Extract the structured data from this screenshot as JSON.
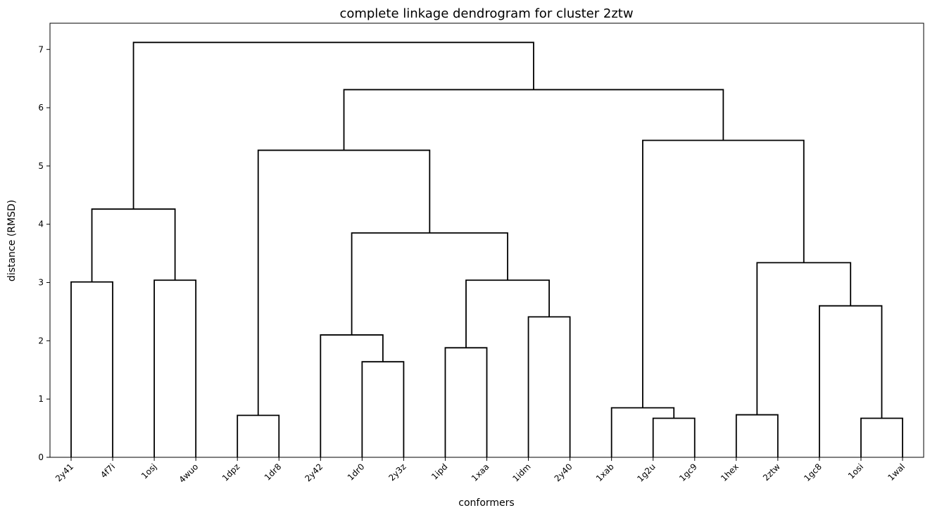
{
  "chart_data": {
    "type": "dendrogram",
    "title": "complete linkage dendrogram for cluster 2ztw",
    "xlabel": "conformers",
    "ylabel": "distance (RMSD)",
    "ylim": [
      0,
      7.45
    ],
    "yticks": [
      0,
      1,
      2,
      3,
      4,
      5,
      6,
      7
    ],
    "grid": false,
    "leaves": [
      "2y41",
      "4f7i",
      "1osj",
      "4wuo",
      "1dpz",
      "1dr8",
      "2y42",
      "1dr0",
      "2y3z",
      "1ipd",
      "1xaa",
      "1idm",
      "2y40",
      "1xab",
      "1g2u",
      "1gc9",
      "1hex",
      "2ztw",
      "1gc8",
      "1osi",
      "1wal"
    ],
    "merges": [
      {
        "left": "2y41",
        "right": "4f7i",
        "height": 3.01
      },
      {
        "left": "1osj",
        "right": "4wuo",
        "height": 3.04
      },
      {
        "left": [
          "2y41",
          "4f7i"
        ],
        "right": [
          "1osj",
          "4wuo"
        ],
        "height": 4.26
      },
      {
        "left": "1dpz",
        "right": "1dr8",
        "height": 0.72
      },
      {
        "left": "1dr0",
        "right": "2y3z",
        "height": 1.64
      },
      {
        "left": "2y42",
        "right": [
          "1dr0",
          "2y3z"
        ],
        "height": 2.1
      },
      {
        "left": "1ipd",
        "right": "1xaa",
        "height": 1.88
      },
      {
        "left": "1idm",
        "right": "2y40",
        "height": 2.41
      },
      {
        "left": [
          "1ipd",
          "1xaa"
        ],
        "right": [
          "1idm",
          "2y40"
        ],
        "height": 3.04
      },
      {
        "left": [
          "2y42",
          "1dr0",
          "2y3z"
        ],
        "right": [
          "1ipd",
          "1xaa",
          "1idm",
          "2y40"
        ],
        "height": 3.85
      },
      {
        "left": [
          "1dpz",
          "1dr8"
        ],
        "right": [
          "2y42",
          "1dr0",
          "2y3z",
          "1ipd",
          "1xaa",
          "1idm",
          "2y40"
        ],
        "height": 5.27
      },
      {
        "left": "1g2u",
        "right": "1gc9",
        "height": 0.67
      },
      {
        "left": "1xab",
        "right": [
          "1g2u",
          "1gc9"
        ],
        "height": 0.85
      },
      {
        "left": "1hex",
        "right": "2ztw",
        "height": 0.73
      },
      {
        "left": "1osi",
        "right": "1wal",
        "height": 0.67
      },
      {
        "left": "1gc8",
        "right": [
          "1osi",
          "1wal"
        ],
        "height": 2.6
      },
      {
        "left": [
          "1hex",
          "2ztw"
        ],
        "right": [
          "1gc8",
          "1osi",
          "1wal"
        ],
        "height": 3.34
      },
      {
        "left": [
          "1xab",
          "1g2u",
          "1gc9"
        ],
        "right": [
          "1hex",
          "2ztw",
          "1gc8",
          "1osi",
          "1wal"
        ],
        "height": 5.44
      },
      {
        "left": [
          "1dpz",
          "1dr8",
          "2y42",
          "1dr0",
          "2y3z",
          "1ipd",
          "1xaa",
          "1idm",
          "2y40"
        ],
        "right": [
          "1xab",
          "1g2u",
          "1gc9",
          "1hex",
          "2ztw",
          "1gc8",
          "1osi",
          "1wal"
        ],
        "height": 6.31
      },
      {
        "left": [
          "2y41",
          "4f7i",
          "1osj",
          "4wuo"
        ],
        "right": [
          "1dpz",
          "1dr8",
          "2y42",
          "1dr0",
          "2y3z",
          "1ipd",
          "1xaa",
          "1idm",
          "2y40",
          "1xab",
          "1g2u",
          "1gc9",
          "1hex",
          "2ztw",
          "1gc8",
          "1osi",
          "1wal"
        ],
        "height": 7.12
      }
    ],
    "colors": {
      "link": "#000000",
      "background": "#ffffff"
    }
  }
}
